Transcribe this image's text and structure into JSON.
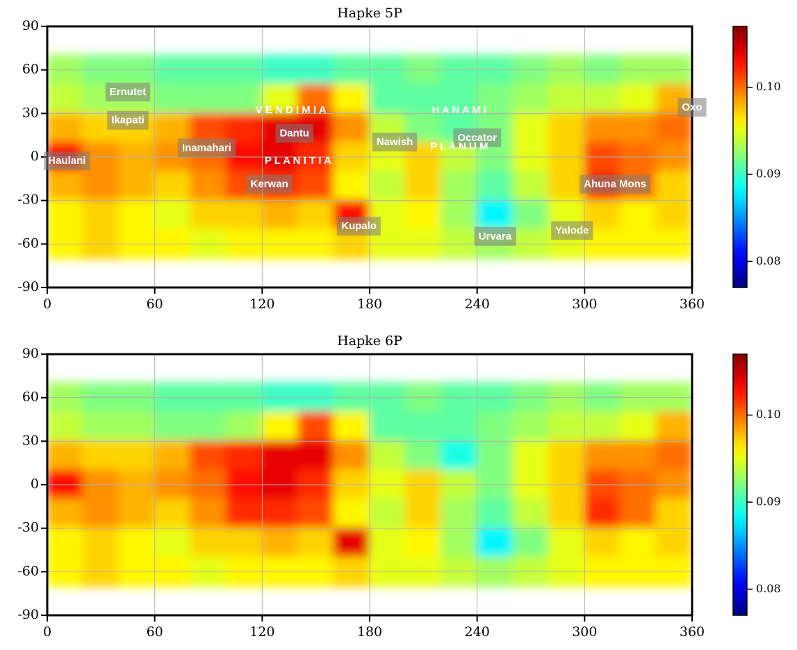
{
  "chart_data": [
    {
      "type": "heatmap",
      "title": "Hapke 5P",
      "x": [
        10,
        30,
        50,
        70,
        90,
        110,
        130,
        150,
        170,
        190,
        210,
        230,
        250,
        270,
        290,
        310,
        330,
        350
      ],
      "y": [
        80,
        60,
        40,
        20,
        0,
        -20,
        -40,
        -60,
        -80
      ],
      "values": [
        [
          null,
          null,
          null,
          null,
          null,
          null,
          null,
          null,
          null,
          null,
          null,
          null,
          null,
          null,
          null,
          null,
          null,
          null
        ],
        [
          0.093,
          0.092,
          0.092,
          0.091,
          0.091,
          0.091,
          0.09,
          0.09,
          0.091,
          0.091,
          0.092,
          0.091,
          0.091,
          0.092,
          0.093,
          0.092,
          0.093,
          0.093
        ],
        [
          0.094,
          0.093,
          0.093,
          0.092,
          0.092,
          0.092,
          0.095,
          0.1,
          0.096,
          0.091,
          0.091,
          0.091,
          0.092,
          0.093,
          0.094,
          0.094,
          0.095,
          0.098
        ],
        [
          0.098,
          0.097,
          0.097,
          0.098,
          0.101,
          0.102,
          0.104,
          0.104,
          0.099,
          0.094,
          0.092,
          0.091,
          0.092,
          0.095,
          0.097,
          0.099,
          0.099,
          0.1
        ],
        [
          0.103,
          0.099,
          0.098,
          0.099,
          0.1,
          0.103,
          0.104,
          0.102,
          0.097,
          0.095,
          0.097,
          0.094,
          0.092,
          0.095,
          0.097,
          0.101,
          0.1,
          0.099
        ],
        [
          0.098,
          0.099,
          0.098,
          0.097,
          0.099,
          0.101,
          0.102,
          0.101,
          0.096,
          0.094,
          0.097,
          0.093,
          0.091,
          0.094,
          0.097,
          0.102,
          0.1,
          0.097
        ],
        [
          0.096,
          0.097,
          0.096,
          0.095,
          0.097,
          0.097,
          0.098,
          0.097,
          0.103,
          0.095,
          0.096,
          0.093,
          0.088,
          0.092,
          0.095,
          0.097,
          0.096,
          0.097
        ],
        [
          0.096,
          0.097,
          0.096,
          0.096,
          0.095,
          0.096,
          0.096,
          0.096,
          0.097,
          0.095,
          0.095,
          0.094,
          0.093,
          0.094,
          0.095,
          0.096,
          0.096,
          0.096
        ],
        [
          null,
          null,
          null,
          null,
          null,
          null,
          null,
          null,
          null,
          null,
          null,
          null,
          null,
          null,
          null,
          null,
          null,
          null
        ]
      ],
      "xlim": [
        0,
        360
      ],
      "ylim": [
        -90,
        90
      ],
      "xticks": [
        0,
        60,
        120,
        180,
        240,
        300,
        360
      ],
      "yticks": [
        -90,
        -60,
        -30,
        0,
        30,
        60,
        90
      ],
      "grid": true,
      "colormap": "jet",
      "clim": [
        0.077,
        0.107
      ],
      "cticks": [
        0.08,
        0.09,
        {
          "value": 0.1,
          "label": "0.10"
        }
      ],
      "annotations": [
        {
          "text": "Ernutet",
          "x": 45,
          "y": 44.5
        },
        {
          "text": "Ikapati",
          "x": 45,
          "y": 25
        },
        {
          "text": "Inamahari",
          "x": 89,
          "y": 6
        },
        {
          "text": "Haulani",
          "x": 11,
          "y": -3
        },
        {
          "text": "Dantu",
          "x": 138,
          "y": 16
        },
        {
          "text": "Kerwan",
          "x": 124,
          "y": -19
        },
        {
          "text": "Kupalo",
          "x": 174,
          "y": -48
        },
        {
          "text": "Nawish",
          "x": 194,
          "y": 10
        },
        {
          "text": "Occator",
          "x": 240,
          "y": 13
        },
        {
          "text": "Oxo",
          "x": 360,
          "y": 34
        },
        {
          "text": "Ahuna Mons",
          "x": 317,
          "y": -19
        },
        {
          "text": "Urvara",
          "x": 250,
          "y": -55
        },
        {
          "text": "Yalode",
          "x": 293,
          "y": -51
        }
      ],
      "region_labels": [
        {
          "text": "V E N D I M I A",
          "x": 136,
          "y": 32
        },
        {
          "text": "P L A N I T I A",
          "x": 140,
          "y": -3
        },
        {
          "text": "H A N A M I",
          "x": 230,
          "y": 32
        },
        {
          "text": "P L A N U M",
          "x": 230,
          "y": 7
        }
      ]
    },
    {
      "type": "heatmap",
      "title": "Hapke 6P",
      "x": [
        10,
        30,
        50,
        70,
        90,
        110,
        130,
        150,
        170,
        190,
        210,
        230,
        250,
        270,
        290,
        310,
        330,
        350
      ],
      "y": [
        80,
        60,
        40,
        20,
        0,
        -20,
        -40,
        -60,
        -80
      ],
      "values": [
        [
          null,
          null,
          null,
          null,
          null,
          null,
          null,
          null,
          null,
          null,
          null,
          null,
          null,
          null,
          null,
          null,
          null,
          null
        ],
        [
          0.093,
          0.092,
          0.092,
          0.091,
          0.091,
          0.091,
          0.09,
          0.09,
          0.091,
          0.091,
          0.092,
          0.091,
          0.091,
          0.092,
          0.093,
          0.092,
          0.093,
          0.093
        ],
        [
          0.094,
          0.093,
          0.093,
          0.092,
          0.092,
          0.093,
          0.096,
          0.101,
          0.096,
          0.091,
          0.091,
          0.091,
          0.092,
          0.093,
          0.094,
          0.094,
          0.095,
          0.098
        ],
        [
          0.098,
          0.097,
          0.097,
          0.098,
          0.101,
          0.102,
          0.104,
          0.104,
          0.099,
          0.094,
          0.092,
          0.089,
          0.092,
          0.095,
          0.097,
          0.099,
          0.099,
          0.1
        ],
        [
          0.103,
          0.099,
          0.098,
          0.099,
          0.1,
          0.103,
          0.104,
          0.102,
          0.097,
          0.095,
          0.097,
          0.094,
          0.092,
          0.095,
          0.097,
          0.101,
          0.1,
          0.099
        ],
        [
          0.098,
          0.099,
          0.098,
          0.097,
          0.099,
          0.102,
          0.102,
          0.101,
          0.096,
          0.094,
          0.097,
          0.093,
          0.091,
          0.094,
          0.097,
          0.102,
          0.1,
          0.097
        ],
        [
          0.096,
          0.097,
          0.096,
          0.095,
          0.097,
          0.097,
          0.098,
          0.097,
          0.104,
          0.095,
          0.096,
          0.093,
          0.088,
          0.092,
          0.095,
          0.097,
          0.096,
          0.097
        ],
        [
          0.096,
          0.097,
          0.096,
          0.096,
          0.095,
          0.096,
          0.096,
          0.096,
          0.097,
          0.095,
          0.095,
          0.094,
          0.093,
          0.094,
          0.095,
          0.096,
          0.096,
          0.096
        ],
        [
          null,
          null,
          null,
          null,
          null,
          null,
          null,
          null,
          null,
          null,
          null,
          null,
          null,
          null,
          null,
          null,
          null,
          null
        ]
      ],
      "xlim": [
        0,
        360
      ],
      "ylim": [
        -90,
        90
      ],
      "xticks": [
        0,
        60,
        120,
        180,
        240,
        300,
        360
      ],
      "yticks": [
        -90,
        -60,
        -30,
        0,
        30,
        60,
        90
      ],
      "grid": true,
      "colormap": "jet",
      "clim": [
        0.077,
        0.107
      ],
      "cticks": [
        0.08,
        0.09,
        {
          "value": 0.1,
          "label": "0.10"
        }
      ]
    }
  ]
}
